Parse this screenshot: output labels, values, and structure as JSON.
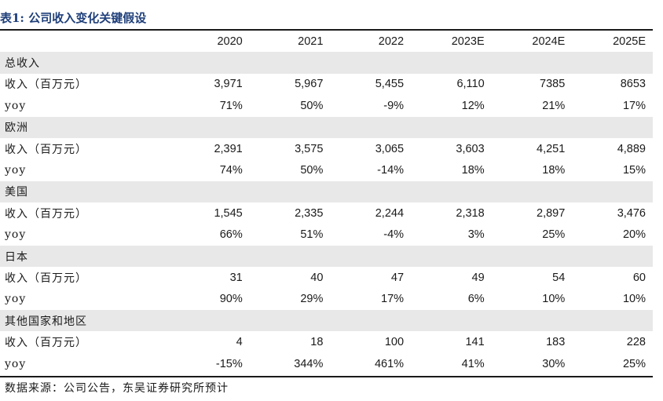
{
  "title": "表1: 公司收入变化关键假设",
  "columns": [
    "2020",
    "2021",
    "2022",
    "2023E",
    "2024E",
    "2025E"
  ],
  "sections": [
    {
      "name": "总收入",
      "rows": [
        {
          "label": "收入（百万元）",
          "values": [
            "3,971",
            "5,967",
            "5,455",
            "6,110",
            "7385",
            "8653"
          ]
        },
        {
          "label": "yoy",
          "values": [
            "71%",
            "50%",
            "-9%",
            "12%",
            "21%",
            "17%"
          ]
        }
      ]
    },
    {
      "name": "欧洲",
      "rows": [
        {
          "label": "收入（百万元）",
          "values": [
            "2,391",
            "3,575",
            "3,065",
            "3,603",
            "4,251",
            "4,889"
          ]
        },
        {
          "label": "yoy",
          "values": [
            "74%",
            "50%",
            "-14%",
            "18%",
            "18%",
            "15%"
          ]
        }
      ]
    },
    {
      "name": "美国",
      "rows": [
        {
          "label": "收入（百万元）",
          "values": [
            "1,545",
            "2,335",
            "2,244",
            "2,318",
            "2,897",
            "3,476"
          ]
        },
        {
          "label": "yoy",
          "values": [
            "66%",
            "51%",
            "-4%",
            "3%",
            "25%",
            "20%"
          ]
        }
      ]
    },
    {
      "name": "日本",
      "rows": [
        {
          "label": "收入（百万元）",
          "values": [
            "31",
            "40",
            "47",
            "49",
            "54",
            "60"
          ]
        },
        {
          "label": "yoy",
          "values": [
            "90%",
            "29%",
            "17%",
            "6%",
            "10%",
            "10%"
          ]
        }
      ]
    },
    {
      "name": "其他国家和地区",
      "rows": [
        {
          "label": "收入（百万元）",
          "values": [
            "4",
            "18",
            "100",
            "141",
            "183",
            "228"
          ]
        },
        {
          "label": "yoy",
          "values": [
            "-15%",
            "344%",
            "461%",
            "41%",
            "30%",
            "25%"
          ]
        }
      ]
    }
  ],
  "source": "数据来源：公司公告，东吴证券研究所预计"
}
